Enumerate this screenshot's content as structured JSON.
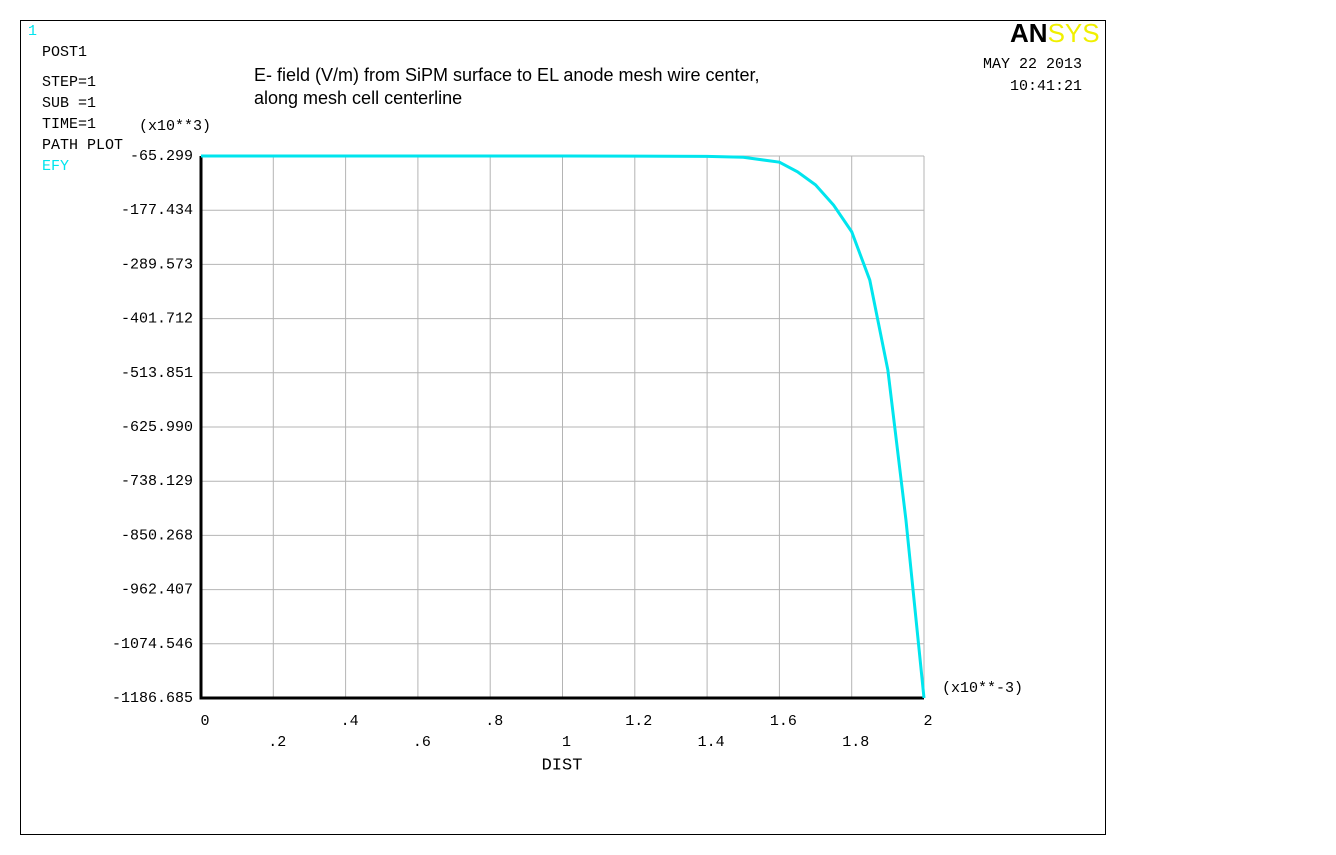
{
  "window_number": "1",
  "info": [
    "POST1",
    "STEP=1",
    "SUB =1",
    "TIME=1",
    "PATH PLOT"
  ],
  "date": "MAY 22 2013",
  "time": "10:41:21",
  "logo": [
    "AN",
    "SYS"
  ],
  "chart_data": {
    "type": "line",
    "title": [
      "E- field (V/m) from SiPM surface to EL anode mesh wire center,",
      "along mesh cell centerline"
    ],
    "xlabel": "DIST",
    "y_multiplier": "(x10**3)",
    "x_multiplier": "(x10**-3)",
    "x": [
      0,
      0.2,
      0.4,
      0.6,
      0.8,
      1,
      1.2,
      1.4,
      1.5,
      1.6,
      1.65,
      1.7,
      1.75,
      1.8,
      1.85,
      1.9,
      1.95,
      2
    ],
    "series": [
      {
        "name": "EFY",
        "color": "#00e5ee",
        "values": [
          -65.299,
          -65.299,
          -65.299,
          -65.299,
          -65.299,
          -65.299,
          -65.5,
          -66,
          -68,
          -78,
          -98,
          -125,
          -167,
          -222,
          -322,
          -508,
          -818,
          -1186.685
        ]
      }
    ],
    "xlim": [
      0,
      2
    ],
    "ylim": [
      -1186.685,
      -65.299
    ],
    "xticks": [
      0,
      {
        "value": 0.2,
        "label": ".2"
      },
      {
        "value": 0.4,
        "label": ".4"
      },
      {
        "value": 0.6,
        "label": ".6"
      },
      {
        "value": 0.8,
        "label": ".8"
      },
      1,
      1.2,
      1.4,
      1.6,
      1.8,
      2
    ],
    "yticks": [
      -65.299,
      -177.434,
      -289.573,
      -401.712,
      -513.851,
      {
        "value": -625.99,
        "label": "-625.990"
      },
      -738.129,
      -850.268,
      -962.407,
      -1074.546,
      -1186.685
    ],
    "grid": true
  }
}
